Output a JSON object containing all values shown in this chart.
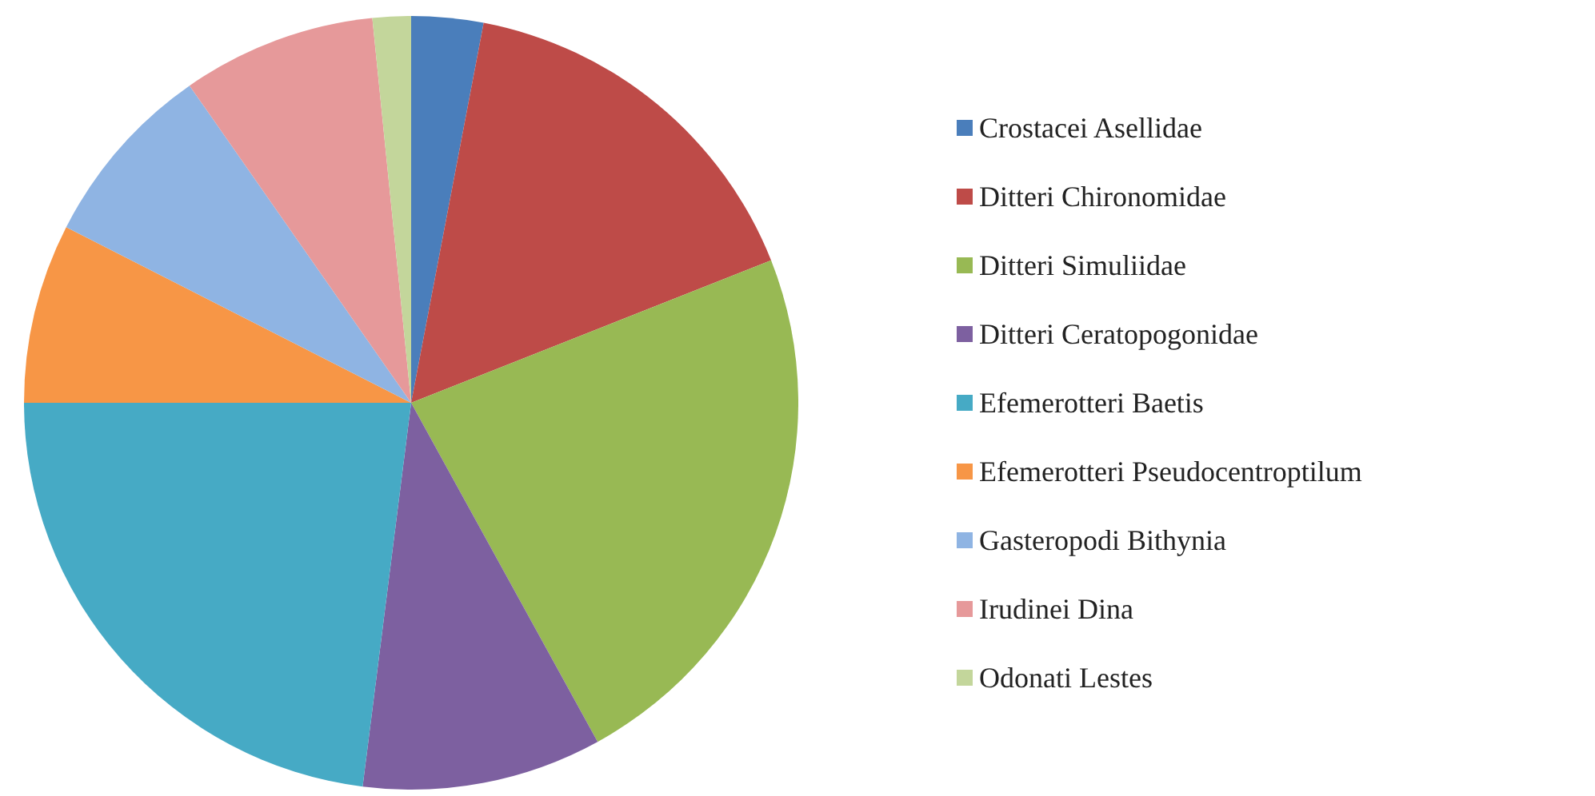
{
  "chart_data": {
    "type": "pie",
    "categories": [
      "Crostacei Asellidae",
      "Ditteri Chironomidae",
      "Ditteri Simuliidae",
      "Ditteri Ceratopogonidae",
      "Efemerotteri Baetis",
      "Efemerotteri Pseudocentroptilum",
      "Gasteropodi Bithynia",
      "Irudinei Dina",
      "Odonati Lestes"
    ],
    "values": [
      3,
      16,
      23,
      10,
      23,
      7.5,
      7.8,
      8.1,
      1.6
    ],
    "colors": [
      "#4a7ebb",
      "#be4b48",
      "#98b954",
      "#7d60a0",
      "#46aac5",
      "#f79646",
      "#8fb4e3",
      "#e6999a",
      "#c3d69b"
    ],
    "legend": "right"
  }
}
